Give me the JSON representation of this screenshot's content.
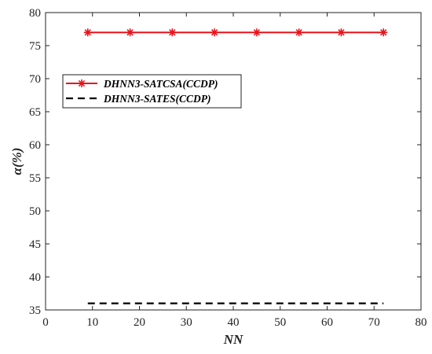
{
  "chart_data": {
    "type": "line",
    "title": "",
    "xlabel": "NN",
    "ylabel": "α(%)",
    "xlim": [
      0,
      80
    ],
    "ylim": [
      35,
      80
    ],
    "xticks": [
      "0",
      "10",
      "20",
      "30",
      "40",
      "50",
      "60",
      "70",
      "80"
    ],
    "yticks": [
      "35",
      "40",
      "45",
      "50",
      "55",
      "60",
      "65",
      "70",
      "75",
      "80"
    ],
    "grid": false,
    "legend_position": "top-left",
    "x": [
      9,
      18,
      27,
      36,
      45,
      54,
      63,
      72
    ],
    "series": [
      {
        "name": "DHNN3-SATCSA(CCDP)",
        "values": [
          77,
          77,
          77,
          77,
          77,
          77,
          77,
          77
        ],
        "color": "#e8141c",
        "line_style": "solid",
        "marker": "asterisk"
      },
      {
        "name": "DHNN3-SATES(CCDP)",
        "values": [
          36,
          36,
          36,
          36,
          36,
          36,
          36,
          36
        ],
        "color": "#000000",
        "line_style": "dashed",
        "marker": "none"
      }
    ]
  }
}
